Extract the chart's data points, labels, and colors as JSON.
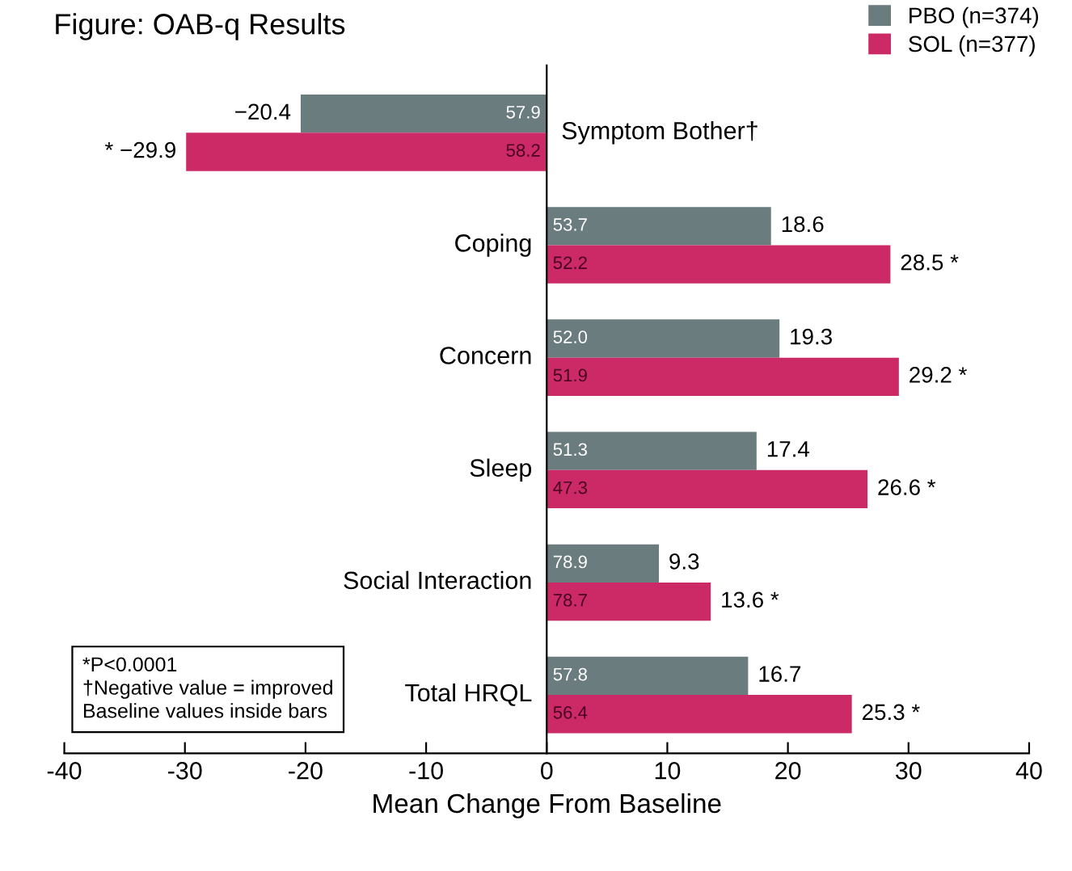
{
  "chart_data": {
    "type": "bar",
    "orientation": "horizontal",
    "title": "Figure: OAB-q Results",
    "xlabel": "Mean Change From Baseline",
    "categories": [
      "Symptom Bother†",
      "Coping",
      "Concern",
      "Sleep",
      "Social Interaction",
      "Total HRQL"
    ],
    "series": [
      {
        "name": "PBO (n=374)",
        "color": "#6b7c7e",
        "values": [
          -20.4,
          18.6,
          19.3,
          17.4,
          9.3,
          16.7
        ],
        "value_labels": [
          "−20.4",
          "18.6",
          "19.3",
          "17.4",
          "9.3",
          "16.7"
        ]
      },
      {
        "name": "SOL (n=377)",
        "color": "#cc2a66",
        "values": [
          -29.9,
          28.5,
          29.2,
          26.6,
          13.6,
          25.3
        ],
        "value_labels": [
          "* −29.9",
          "28.5 *",
          "29.2 *",
          "26.6 *",
          "13.6 *",
          "25.3 *"
        ]
      }
    ],
    "annotations": [
      {
        "text": "57.9",
        "y": "Symptom Bother†"
      },
      {
        "text": "58.2",
        "y": "Symptom Bother†"
      },
      {
        "text": "53.7",
        "y": "Coping"
      },
      {
        "text": "52.2",
        "y": "Coping"
      },
      {
        "text": "52.0",
        "y": "Concern"
      },
      {
        "text": "51.9",
        "y": "Concern"
      },
      {
        "text": "51.3",
        "y": "Sleep"
      },
      {
        "text": "47.3",
        "y": "Sleep"
      },
      {
        "text": "78.9",
        "y": "Social Interaction"
      },
      {
        "text": "78.7",
        "y": "Social Interaction"
      },
      {
        "text": "57.8",
        "y": "Total HRQL"
      },
      {
        "text": "56.4",
        "y": "Total HRQL"
      },
      "*P<0.0001\n†Negative value = improved\nBaseline values inside bars"
    ],
    "xlim": [
      -40,
      40
    ],
    "xticks": [
      -40,
      -30,
      -20,
      -10,
      0,
      10,
      20,
      30,
      40
    ],
    "legend": "top right",
    "tick_labels": "x",
    "grid": false
  }
}
